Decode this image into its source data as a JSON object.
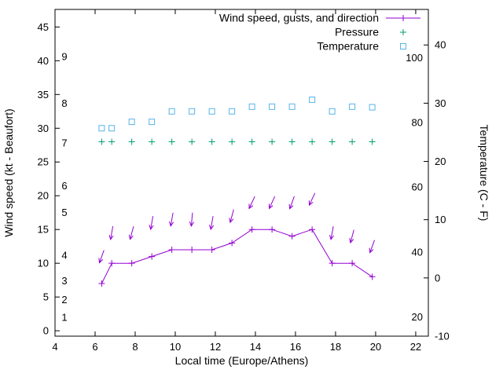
{
  "chart_data": {
    "type": "line",
    "title": "",
    "xlabel": "Local time (Europe/Athens)",
    "ylabel_left": "Wind speed (kt - Beaufort)",
    "ylabel_right": "Temperature (C - F)",
    "legend_position": "top-right",
    "grid": false,
    "x_ticks": [
      4,
      6,
      8,
      10,
      12,
      14,
      16,
      18,
      20,
      22
    ],
    "x_range": [
      4,
      22.63
    ],
    "y_left_ticks_kt": [
      0,
      5,
      10,
      15,
      20,
      25,
      30,
      35,
      40,
      45
    ],
    "y_left_range_kt": [
      -0.8,
      47.6
    ],
    "beaufort_labels": [
      {
        "label": "1",
        "kt": 2.0
      },
      {
        "label": "2",
        "kt": 4.6
      },
      {
        "label": "3",
        "kt": 7.4
      },
      {
        "label": "4",
        "kt": 11.2
      },
      {
        "label": "5",
        "kt": 17.5
      },
      {
        "label": "6",
        "kt": 21.5
      },
      {
        "label": "7",
        "kt": 27.8
      },
      {
        "label": "8",
        "kt": 33.7
      },
      {
        "label": "9",
        "kt": 40.6
      }
    ],
    "y_right_ticks_c": [
      -10,
      0,
      10,
      20,
      30,
      40
    ],
    "y_right_range_c": [
      -10,
      46.1
    ],
    "fahrenheit_labels": [
      {
        "label": "20",
        "c": -6.7
      },
      {
        "label": "40",
        "c": 4.4
      },
      {
        "label": "60",
        "c": 15.6
      },
      {
        "label": "80",
        "c": 26.7
      },
      {
        "label": "100",
        "c": 37.8
      }
    ],
    "series": [
      {
        "name": "Wind speed, gusts, and direction",
        "color": "#9400d3",
        "marker": "plus",
        "line": true
      },
      {
        "name": "Pressure",
        "color": "#009e73",
        "marker": "plus",
        "line": false
      },
      {
        "name": "Temperature",
        "color": "#56b4e9",
        "marker": "square",
        "line": false
      }
    ],
    "x": [
      6.33,
      6.83,
      7.83,
      8.83,
      9.83,
      10.83,
      11.83,
      12.83,
      13.83,
      14.83,
      15.83,
      16.83,
      17.83,
      18.83,
      19.83
    ],
    "wind_speed_kt": [
      7,
      10,
      10,
      11,
      12,
      12,
      12,
      13,
      15,
      15,
      14,
      15,
      10,
      10,
      8
    ],
    "wind_gust_kt": [
      11,
      14.5,
      14.5,
      16,
      16.5,
      16.5,
      16,
      17,
      19,
      19,
      19,
      19.5,
      14.5,
      14,
      12.5
    ],
    "wind_dir_from_deg": [
      20,
      10,
      15,
      10,
      10,
      5,
      10,
      15,
      25,
      25,
      20,
      25,
      10,
      15,
      20
    ],
    "pressure_plotted_kt_units": [
      28,
      28,
      28,
      28,
      28,
      28,
      28,
      28,
      28,
      28,
      28,
      28,
      28,
      28,
      28
    ],
    "temperature_c": [
      25.7,
      25.7,
      26.8,
      26.8,
      28.6,
      28.6,
      28.6,
      28.6,
      29.4,
      29.4,
      29.4,
      30.6,
      28.6,
      29.4,
      29.3
    ]
  }
}
